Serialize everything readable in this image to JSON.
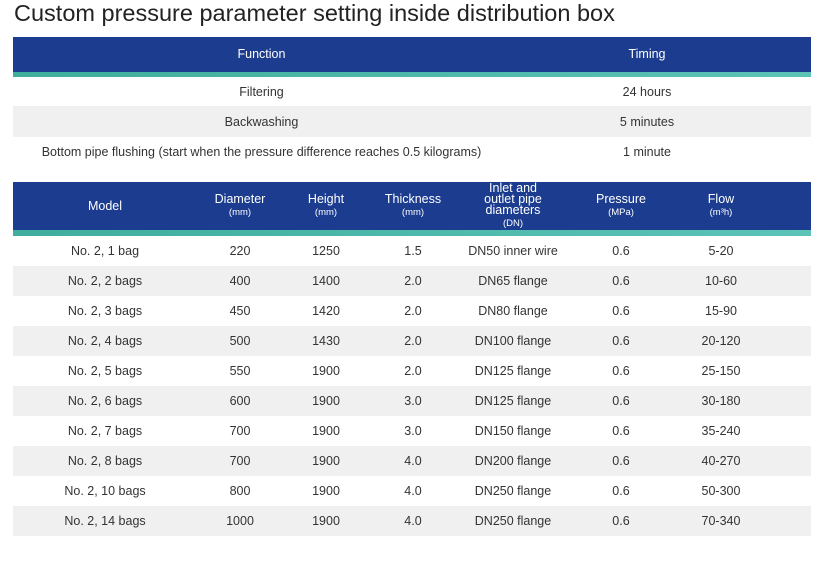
{
  "title": "Custom pressure parameter setting inside distribution box",
  "table1": {
    "headers": [
      "Function",
      "Timing"
    ],
    "rows": [
      [
        "Filtering",
        "24 hours"
      ],
      [
        "Backwashing",
        "5 minutes"
      ],
      [
        "Bottom pipe flushing (start when the pressure difference reaches 0.5 kilograms)",
        "1 minute"
      ]
    ]
  },
  "table2": {
    "headers": [
      {
        "label": "Model"
      },
      {
        "label": "Diameter",
        "unit": "(mm)"
      },
      {
        "label": "Height",
        "unit": "(mm)"
      },
      {
        "label": "Thickness",
        "unit": "(mm)"
      },
      {
        "label": "Inlet and outlet pipe diameters",
        "unit": "(DN)"
      },
      {
        "label": "Pressure",
        "unit": "(MPa)"
      },
      {
        "label": "Flow",
        "unit": "(m³h)"
      }
    ],
    "rows": [
      [
        "No. 2, 1 bag",
        "220",
        "1250",
        "1.5",
        "DN50 inner wire",
        "0.6",
        "5-20"
      ],
      [
        "No. 2, 2 bags",
        "400",
        "1400",
        "2.0",
        "DN65 flange",
        "0.6",
        "10-60"
      ],
      [
        "No. 2, 3 bags",
        "450",
        "1420",
        "2.0",
        "DN80 flange",
        "0.6",
        "15-90"
      ],
      [
        "No. 2, 4 bags",
        "500",
        "1430",
        "2.0",
        "DN100 flange",
        "0.6",
        "20-120"
      ],
      [
        "No. 2, 5 bags",
        "550",
        "1900",
        "2.0",
        "DN125 flange",
        "0.6",
        "25-150"
      ],
      [
        "No. 2, 6 bags",
        "600",
        "1900",
        "3.0",
        "DN125 flange",
        "0.6",
        "30-180"
      ],
      [
        "No. 2, 7 bags",
        "700",
        "1900",
        "3.0",
        "DN150 flange",
        "0.6",
        "35-240"
      ],
      [
        "No. 2, 8 bags",
        "700",
        "1900",
        "4.0",
        "DN200 flange",
        "0.6",
        "40-270"
      ],
      [
        "No. 2, 10 bags",
        "800",
        "1900",
        "4.0",
        "DN250 flange",
        "0.6",
        "50-300"
      ],
      [
        "No. 2, 14 bags",
        "1000",
        "1900",
        "4.0",
        "DN250 flange",
        "0.6",
        "70-340"
      ]
    ]
  }
}
